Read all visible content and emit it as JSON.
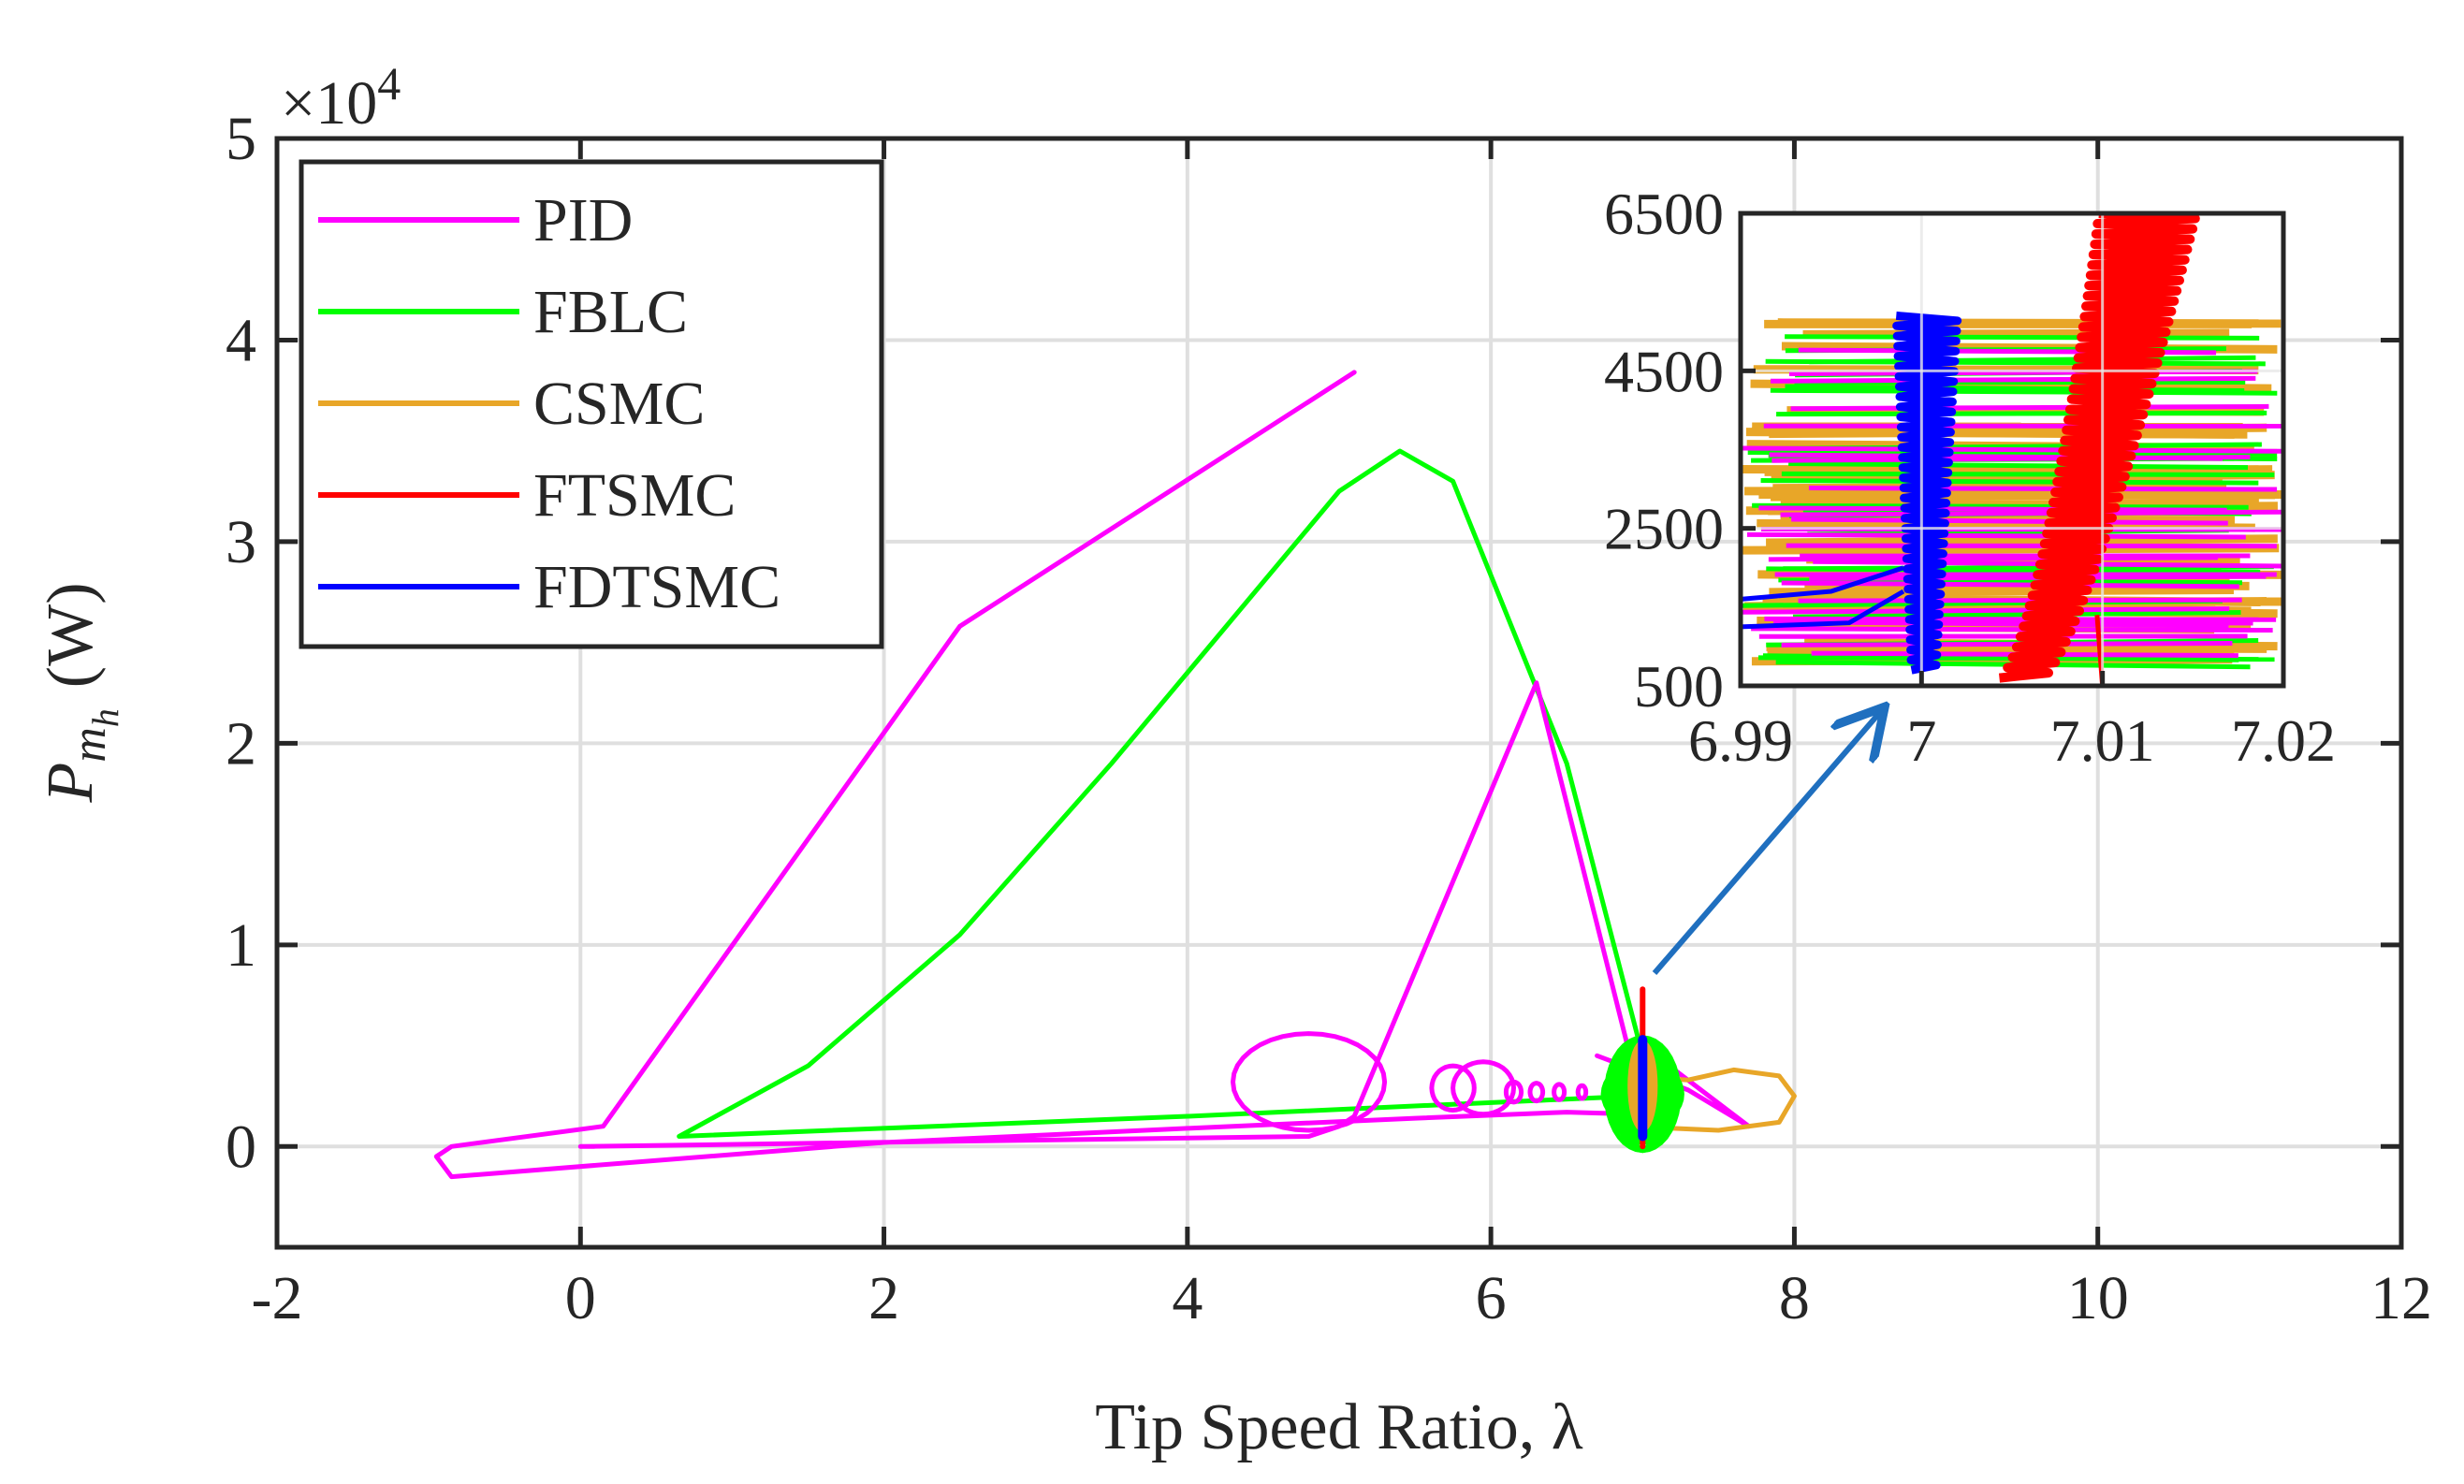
{
  "chart_data": [
    {
      "type": "line",
      "role": "main",
      "xlabel": "Tip Speed Ratio, λ",
      "ylabel": "(W)",
      "ylabel_symbol": "P",
      "ylabel_sub": "m",
      "ylabel_subsub": "h",
      "exponent_label": "×10",
      "exponent_power": "4",
      "xlim": [
        -2,
        12
      ],
      "ylim": [
        -5000,
        50000
      ],
      "xticks": [
        -2,
        0,
        2,
        4,
        6,
        8,
        10,
        12
      ],
      "xtick_labels": [
        "-2",
        "0",
        "2",
        "4",
        "6",
        "8",
        "10",
        "12"
      ],
      "yticks": [
        0,
        10000,
        20000,
        30000,
        40000,
        50000
      ],
      "ytick_labels": [
        "0",
        "1",
        "2",
        "3",
        "4",
        "5"
      ],
      "grid": true,
      "legend_position": "top-left",
      "series": [
        {
          "name": "PID",
          "color": "#ff00ff",
          "x": [
            0,
            4.8,
            5.0,
            5.1,
            6.3,
            6.9,
            7.0,
            6.95,
            6.5,
            5.5,
            4.0,
            2.0,
            -0.85,
            -0.95,
            -0.85,
            0.15,
            2.5,
            5.1
          ],
          "y": [
            0,
            500,
            1000,
            1500,
            23000,
            5000,
            2000,
            1600,
            1700,
            1400,
            900,
            200,
            -1500,
            -500,
            0,
            1000,
            25800,
            38400
          ]
        },
        {
          "name": "FBLC",
          "color": "#00ff00",
          "x": [
            0.65,
            1.5,
            2.5,
            3.5,
            4.5,
            5.0,
            5.4,
            5.75,
            6.5,
            7.0,
            6.95,
            4.0,
            0.65
          ],
          "y": [
            500,
            4000,
            10500,
            19000,
            28000,
            32500,
            34500,
            33000,
            19000,
            4500,
            2500,
            1500,
            500
          ]
        },
        {
          "name": "CSMC",
          "color": "#e8a628",
          "x": [
            6.9,
            7.3,
            7.6,
            7.9,
            8.0,
            7.9,
            7.5,
            7.2,
            7.0
          ],
          "y": [
            3500,
            3300,
            3800,
            3500,
            2500,
            1200,
            800,
            900,
            1200
          ]
        },
        {
          "name": "FTSMC",
          "color": "#ff0000",
          "x": [
            7.0,
            7.0
          ],
          "y": [
            0,
            7800
          ]
        },
        {
          "name": "FDTSMC",
          "color": "#0000ff",
          "x": [
            7.0,
            7.0
          ],
          "y": [
            500,
            5300
          ]
        }
      ]
    },
    {
      "type": "line",
      "role": "inset",
      "xlim": [
        6.99,
        7.02
      ],
      "ylim": [
        500,
        6500
      ],
      "xticks": [
        6.99,
        7.0,
        7.01,
        7.02
      ],
      "xtick_labels": [
        "6.99",
        "7",
        "7.01",
        "7.02"
      ],
      "yticks": [
        500,
        2500,
        4500,
        6500
      ],
      "ytick_labels": [
        "500",
        "2500",
        "4500",
        "6500"
      ],
      "grid": true,
      "zoom_target": {
        "x": 7.0,
        "y": 8500
      },
      "bands": [
        {
          "name": "CSMC",
          "color": "#e8a628",
          "y_range": [
            700,
            5300
          ]
        },
        {
          "name": "FBLC",
          "color": "#00ff00",
          "y_range": [
            800,
            5100
          ]
        },
        {
          "name": "PID",
          "color": "#ff00ff",
          "y_range": [
            900,
            4900
          ]
        }
      ],
      "fdtsmc": {
        "color": "#0000ff",
        "x_center": 7.0,
        "y_range": [
          700,
          5200
        ],
        "tail_x": [
          6.99,
          6.995,
          6.999
        ],
        "tail_y": [
          1600,
          1700,
          2000
        ]
      },
      "ftsmc": {
        "color": "#ff0000",
        "x_range": [
          7.0055,
          7.0135
        ],
        "y_range": [
          600,
          6500
        ],
        "spike_x": 7.01,
        "spike_y": [
          500,
          1400
        ]
      }
    }
  ]
}
